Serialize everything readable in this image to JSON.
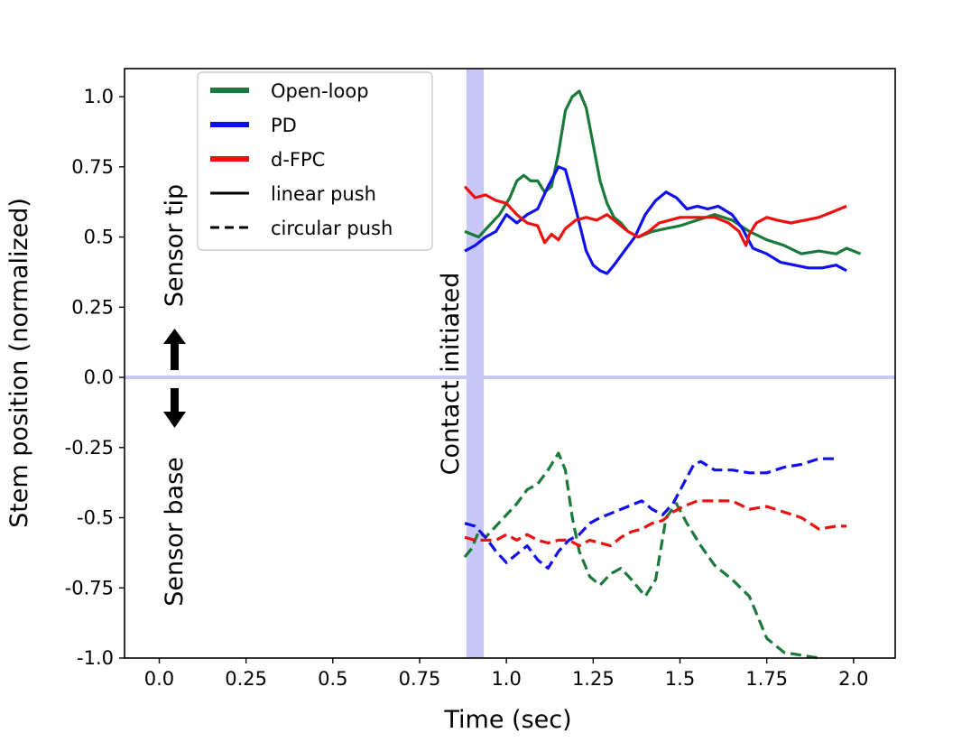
{
  "chart_data": {
    "type": "line",
    "title": "",
    "xlabel": "Time (sec)",
    "ylabel": "Stem position (normalized)",
    "xlim": [
      -0.1,
      2.12
    ],
    "ylim": [
      -1.0,
      1.1
    ],
    "xticks": [
      0.0,
      0.25,
      0.5,
      0.75,
      1.0,
      1.25,
      1.5,
      1.75,
      2.0
    ],
    "xtick_labels": [
      "0.0",
      "0.25",
      "0.5",
      "0.75",
      "1.0",
      "1.25",
      "1.5",
      "1.75",
      "2.0"
    ],
    "yticks": [
      1.0,
      0.75,
      0.5,
      0.25,
      0.0,
      -0.25,
      -0.5,
      -0.75,
      -1.0
    ],
    "ytick_labels": [
      "1.0",
      "0.75",
      "0.5",
      "0.25",
      "0.0",
      "-0.25",
      "-0.5",
      "-0.75",
      "-1.0"
    ],
    "grid": false,
    "legend_position": "top-left",
    "legend": [
      {
        "label": "Open-loop",
        "color": "#1a7a3a",
        "style": "solid"
      },
      {
        "label": "PD",
        "color": "#1010ee",
        "style": "solid"
      },
      {
        "label": "d-FPC",
        "color": "#ee1010",
        "style": "solid"
      },
      {
        "label": "linear push",
        "color": "#000000",
        "style": "solid"
      },
      {
        "label": "circular push",
        "color": "#000000",
        "style": "dashed"
      }
    ],
    "annotations": {
      "sensor_tip": "Sensor tip",
      "sensor_base": "Sensor base",
      "contact": "Contact initiated",
      "contact_time": 0.91,
      "contact_band_width": 0.05,
      "zero_line": 0.0
    },
    "series": [
      {
        "name": "Open-loop",
        "push": "linear push",
        "color": "#1a7a3a",
        "dashed": false,
        "x": [
          0.88,
          0.92,
          0.95,
          0.98,
          1.01,
          1.03,
          1.05,
          1.07,
          1.09,
          1.11,
          1.13,
          1.15,
          1.17,
          1.19,
          1.21,
          1.23,
          1.25,
          1.27,
          1.29,
          1.31,
          1.33,
          1.35,
          1.38,
          1.42,
          1.46,
          1.5,
          1.55,
          1.6,
          1.65,
          1.7,
          1.75,
          1.8,
          1.85,
          1.9,
          1.95,
          1.98,
          2.02
        ],
        "y": [
          0.52,
          0.5,
          0.54,
          0.58,
          0.64,
          0.7,
          0.72,
          0.7,
          0.7,
          0.66,
          0.68,
          0.8,
          0.95,
          1.0,
          1.02,
          0.96,
          0.83,
          0.7,
          0.62,
          0.57,
          0.55,
          0.52,
          0.5,
          0.52,
          0.53,
          0.54,
          0.56,
          0.58,
          0.56,
          0.52,
          0.49,
          0.47,
          0.44,
          0.45,
          0.44,
          0.46,
          0.44
        ]
      },
      {
        "name": "PD",
        "push": "linear push",
        "color": "#1010ee",
        "dashed": false,
        "x": [
          0.88,
          0.91,
          0.94,
          0.97,
          1.0,
          1.03,
          1.06,
          1.09,
          1.12,
          1.15,
          1.17,
          1.19,
          1.21,
          1.23,
          1.25,
          1.27,
          1.29,
          1.31,
          1.34,
          1.37,
          1.4,
          1.43,
          1.46,
          1.49,
          1.52,
          1.55,
          1.58,
          1.61,
          1.65,
          1.68,
          1.71,
          1.75,
          1.79,
          1.83,
          1.87,
          1.91,
          1.95,
          1.98
        ],
        "y": [
          0.45,
          0.47,
          0.5,
          0.52,
          0.58,
          0.55,
          0.58,
          0.6,
          0.68,
          0.75,
          0.74,
          0.65,
          0.55,
          0.45,
          0.4,
          0.38,
          0.37,
          0.4,
          0.45,
          0.5,
          0.58,
          0.63,
          0.66,
          0.64,
          0.6,
          0.61,
          0.6,
          0.61,
          0.58,
          0.53,
          0.46,
          0.44,
          0.41,
          0.4,
          0.39,
          0.39,
          0.4,
          0.38
        ]
      },
      {
        "name": "d-FPC",
        "push": "linear push",
        "color": "#ee1010",
        "dashed": false,
        "x": [
          0.88,
          0.91,
          0.94,
          0.97,
          1.0,
          1.03,
          1.06,
          1.09,
          1.11,
          1.13,
          1.15,
          1.17,
          1.2,
          1.23,
          1.26,
          1.29,
          1.32,
          1.35,
          1.38,
          1.41,
          1.44,
          1.47,
          1.5,
          1.55,
          1.6,
          1.64,
          1.67,
          1.69,
          1.7,
          1.72,
          1.75,
          1.78,
          1.82,
          1.86,
          1.9,
          1.94,
          1.98
        ],
        "y": [
          0.68,
          0.64,
          0.65,
          0.63,
          0.62,
          0.58,
          0.55,
          0.54,
          0.48,
          0.51,
          0.49,
          0.53,
          0.56,
          0.57,
          0.56,
          0.58,
          0.55,
          0.52,
          0.5,
          0.52,
          0.55,
          0.56,
          0.57,
          0.57,
          0.57,
          0.55,
          0.52,
          0.47,
          0.51,
          0.55,
          0.57,
          0.56,
          0.55,
          0.56,
          0.57,
          0.59,
          0.61
        ]
      },
      {
        "name": "Open-loop",
        "push": "circular push",
        "color": "#1a7a3a",
        "dashed": true,
        "x": [
          0.88,
          0.9,
          0.92,
          0.94,
          0.97,
          1.0,
          1.03,
          1.06,
          1.09,
          1.12,
          1.15,
          1.17,
          1.19,
          1.21,
          1.24,
          1.27,
          1.3,
          1.33,
          1.36,
          1.4,
          1.43,
          1.46,
          1.49,
          1.52,
          1.56,
          1.6,
          1.65,
          1.7,
          1.75,
          1.8,
          1.85,
          1.9
        ],
        "y": [
          -0.64,
          -0.61,
          -0.55,
          -0.57,
          -0.53,
          -0.49,
          -0.45,
          -0.4,
          -0.38,
          -0.33,
          -0.27,
          -0.33,
          -0.5,
          -0.62,
          -0.71,
          -0.74,
          -0.7,
          -0.68,
          -0.72,
          -0.78,
          -0.72,
          -0.5,
          -0.45,
          -0.52,
          -0.6,
          -0.67,
          -0.72,
          -0.78,
          -0.93,
          -0.98,
          -0.99,
          -1.0
        ]
      },
      {
        "name": "PD",
        "push": "circular push",
        "color": "#1010ee",
        "dashed": true,
        "x": [
          0.88,
          0.91,
          0.94,
          0.97,
          1.0,
          1.03,
          1.06,
          1.09,
          1.12,
          1.15,
          1.18,
          1.21,
          1.24,
          1.27,
          1.31,
          1.35,
          1.39,
          1.42,
          1.45,
          1.48,
          1.51,
          1.54,
          1.56,
          1.6,
          1.65,
          1.7,
          1.75,
          1.8,
          1.85,
          1.9,
          1.95
        ],
        "y": [
          -0.52,
          -0.53,
          -0.57,
          -0.62,
          -0.66,
          -0.63,
          -0.6,
          -0.65,
          -0.68,
          -0.62,
          -0.58,
          -0.56,
          -0.52,
          -0.5,
          -0.48,
          -0.46,
          -0.44,
          -0.47,
          -0.49,
          -0.45,
          -0.38,
          -0.31,
          -0.3,
          -0.33,
          -0.33,
          -0.34,
          -0.34,
          -0.32,
          -0.31,
          -0.29,
          -0.29
        ]
      },
      {
        "name": "d-FPC",
        "push": "circular push",
        "color": "#ee1010",
        "dashed": true,
        "x": [
          0.88,
          0.91,
          0.94,
          0.97,
          1.0,
          1.03,
          1.06,
          1.09,
          1.12,
          1.15,
          1.18,
          1.21,
          1.24,
          1.27,
          1.3,
          1.33,
          1.36,
          1.39,
          1.42,
          1.45,
          1.48,
          1.51,
          1.55,
          1.6,
          1.65,
          1.7,
          1.75,
          1.8,
          1.85,
          1.9,
          1.95,
          1.98
        ],
        "y": [
          -0.57,
          -0.58,
          -0.58,
          -0.58,
          -0.56,
          -0.58,
          -0.56,
          -0.58,
          -0.59,
          -0.58,
          -0.58,
          -0.6,
          -0.58,
          -0.59,
          -0.6,
          -0.57,
          -0.55,
          -0.54,
          -0.52,
          -0.51,
          -0.48,
          -0.46,
          -0.44,
          -0.44,
          -0.44,
          -0.47,
          -0.46,
          -0.48,
          -0.5,
          -0.54,
          -0.53,
          -0.53
        ]
      }
    ]
  }
}
